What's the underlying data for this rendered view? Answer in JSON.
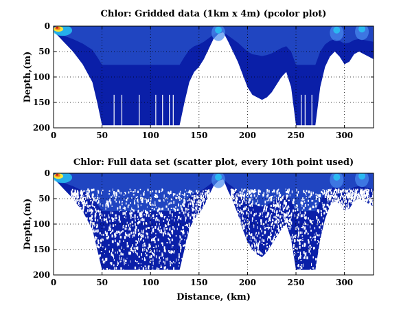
{
  "chart_data": [
    {
      "type": "heatmap",
      "title": "Chlor: Gridded data (1km x 4m) (pcolor plot)",
      "xlabel": "",
      "ylabel": "Depth,(m)",
      "xlim": [
        0,
        330
      ],
      "ylim": [
        200,
        0
      ],
      "xticks": [
        0,
        50,
        100,
        150,
        200,
        250,
        300
      ],
      "yticks": [
        0,
        50,
        100,
        150,
        200
      ],
      "grid": true,
      "bottom_depth_profile": {
        "distance_km": [
          0,
          5,
          10,
          20,
          30,
          40,
          45,
          50,
          55,
          60,
          65,
          70,
          80,
          90,
          100,
          110,
          120,
          125,
          130,
          135,
          140,
          145,
          150,
          155,
          160,
          165,
          170,
          175,
          180,
          185,
          190,
          195,
          200,
          205,
          210,
          215,
          220,
          225,
          230,
          235,
          240,
          245,
          250,
          255,
          260,
          265,
          270,
          275,
          280,
          285,
          290,
          295,
          300,
          305,
          310,
          315,
          320,
          325,
          330
        ],
        "depth_m": [
          10,
          20,
          30,
          50,
          75,
          110,
          150,
          195,
          195,
          195,
          195,
          195,
          195,
          195,
          195,
          195,
          195,
          195,
          195,
          150,
          110,
          90,
          80,
          65,
          45,
          25,
          15,
          12,
          30,
          50,
          70,
          95,
          120,
          135,
          140,
          145,
          140,
          130,
          115,
          100,
          90,
          120,
          195,
          195,
          195,
          195,
          195,
          120,
          80,
          60,
          50,
          60,
          75,
          70,
          55,
          50,
          55,
          60,
          65
        ]
      },
      "color_scale": "jet (blue = low, red = high)",
      "highlights": [
        {
          "distance_km": 5,
          "depth_m": 3,
          "level": "high"
        },
        {
          "distance_km": 170,
          "depth_m": 5,
          "level": "medium"
        },
        {
          "distance_km": 292,
          "depth_m": 5,
          "level": "medium"
        },
        {
          "distance_km": 318,
          "depth_m": 3,
          "level": "medium"
        }
      ]
    },
    {
      "type": "scatter",
      "title": "Chlor: Full data set (scatter plot, every 10th point used)",
      "xlabel": "Distance, (km)",
      "ylabel": "Depth,(m)",
      "xlim": [
        0,
        330
      ],
      "ylim": [
        200,
        0
      ],
      "xticks": [
        0,
        50,
        100,
        150,
        200,
        250,
        300
      ],
      "yticks": [
        0,
        50,
        100,
        150,
        200
      ],
      "grid": true,
      "bottom_depth_profile": {
        "distance_km": [
          0,
          5,
          10,
          20,
          30,
          40,
          45,
          50,
          55,
          60,
          65,
          70,
          80,
          90,
          100,
          110,
          120,
          125,
          130,
          135,
          140,
          145,
          150,
          155,
          160,
          165,
          170,
          175,
          180,
          185,
          190,
          195,
          200,
          205,
          210,
          215,
          220,
          225,
          230,
          235,
          240,
          245,
          250,
          255,
          260,
          265,
          270,
          275,
          280,
          285,
          290,
          295,
          300,
          305,
          310,
          315,
          320,
          325,
          330
        ],
        "depth_m": [
          10,
          20,
          30,
          50,
          75,
          110,
          150,
          190,
          190,
          190,
          190,
          190,
          190,
          190,
          190,
          190,
          190,
          190,
          190,
          150,
          110,
          90,
          80,
          65,
          45,
          25,
          15,
          12,
          35,
          55,
          80,
          110,
          135,
          150,
          160,
          165,
          155,
          140,
          125,
          110,
          100,
          130,
          190,
          190,
          190,
          190,
          190,
          130,
          90,
          65,
          55,
          60,
          75,
          70,
          55,
          50,
          55,
          60,
          65
        ]
      },
      "color_scale": "jet (blue = low, red = high)",
      "highlights": [
        {
          "distance_km": 5,
          "depth_m": 3,
          "level": "high"
        },
        {
          "distance_km": 170,
          "depth_m": 5,
          "level": "medium"
        },
        {
          "distance_km": 292,
          "depth_m": 5,
          "level": "medium"
        },
        {
          "distance_km": 318,
          "depth_m": 3,
          "level": "medium"
        }
      ]
    }
  ],
  "colors": {
    "fill": "#0a1fa8",
    "fill_dark": "#000a8c",
    "cyan": "#27c9f5",
    "light_blue": "#4a8cf0",
    "yellow": "#f5e83a",
    "orange": "#f58a1a",
    "red": "#c81e1e",
    "frame": "#000000"
  }
}
